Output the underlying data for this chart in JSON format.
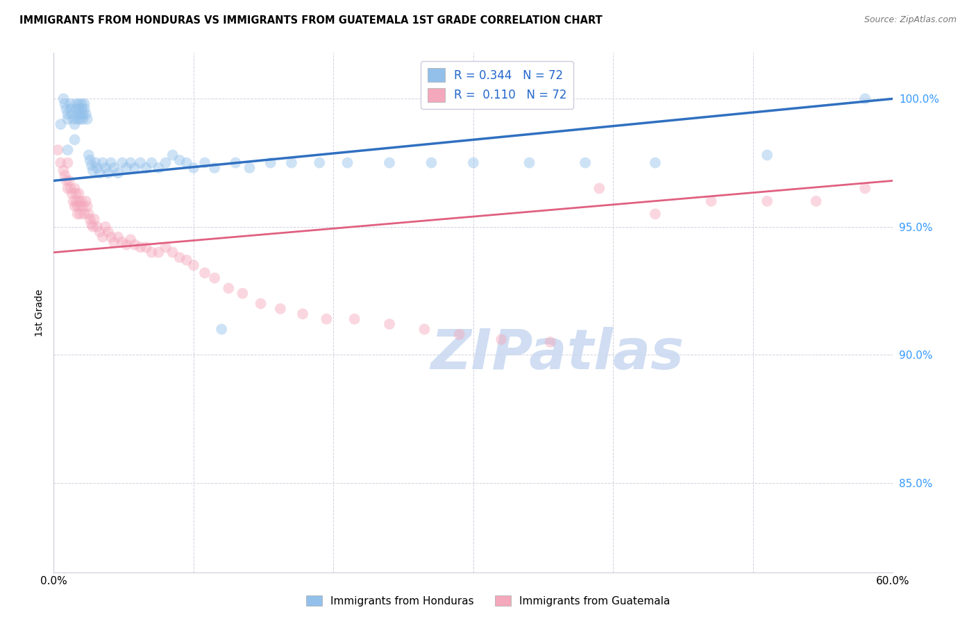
{
  "title": "IMMIGRANTS FROM HONDURAS VS IMMIGRANTS FROM GUATEMALA 1ST GRADE CORRELATION CHART",
  "source": "Source: ZipAtlas.com",
  "ylabel_label": "1st Grade",
  "xlim": [
    0.0,
    0.6
  ],
  "ylim": [
    0.815,
    1.018
  ],
  "y_ticks": [
    0.85,
    0.9,
    0.95,
    1.0
  ],
  "x_tick_positions": [
    0.0,
    0.1,
    0.2,
    0.3,
    0.4,
    0.5,
    0.6
  ],
  "x_tick_labels": [
    "0.0%",
    "",
    "",
    "",
    "",
    "",
    "60.0%"
  ],
  "R_honduras": 0.344,
  "N_honduras": 72,
  "R_guatemala": 0.11,
  "N_guatemala": 72,
  "legend_label_honduras": "Immigrants from Honduras",
  "legend_label_guatemala": "Immigrants from Guatemala",
  "color_honduras": "#92C0EA",
  "color_guatemala": "#F4A8BC",
  "line_color_honduras": "#3070C0",
  "line_color_guatemala": "#E06080",
  "marker_size": 130,
  "marker_alpha": 0.45,
  "watermark": "ZIPatlas",
  "watermark_color": "#C8D8F0",
  "honduras_x": [
    0.005,
    0.007,
    0.008,
    0.009,
    0.01,
    0.01,
    0.01,
    0.012,
    0.012,
    0.013,
    0.014,
    0.015,
    0.015,
    0.016,
    0.016,
    0.017,
    0.017,
    0.018,
    0.018,
    0.019,
    0.019,
    0.02,
    0.02,
    0.021,
    0.021,
    0.022,
    0.022,
    0.023,
    0.024,
    0.025,
    0.026,
    0.027,
    0.028,
    0.03,
    0.031,
    0.033,
    0.035,
    0.037,
    0.039,
    0.041,
    0.043,
    0.046,
    0.049,
    0.052,
    0.055,
    0.058,
    0.062,
    0.066,
    0.07,
    0.075,
    0.08,
    0.085,
    0.09,
    0.095,
    0.1,
    0.108,
    0.115,
    0.12,
    0.13,
    0.14,
    0.155,
    0.17,
    0.19,
    0.21,
    0.24,
    0.27,
    0.3,
    0.34,
    0.38,
    0.43,
    0.51,
    0.58
  ],
  "honduras_y": [
    0.99,
    1.0,
    0.998,
    0.996,
    0.994,
    0.992,
    0.98,
    0.998,
    0.996,
    0.994,
    0.992,
    0.99,
    0.984,
    0.998,
    0.996,
    0.994,
    0.992,
    0.998,
    0.996,
    0.994,
    0.992,
    0.998,
    0.996,
    0.994,
    0.992,
    0.998,
    0.996,
    0.994,
    0.992,
    0.978,
    0.976,
    0.974,
    0.972,
    0.975,
    0.973,
    0.971,
    0.975,
    0.973,
    0.971,
    0.975,
    0.973,
    0.971,
    0.975,
    0.973,
    0.975,
    0.973,
    0.975,
    0.973,
    0.975,
    0.973,
    0.975,
    0.978,
    0.976,
    0.975,
    0.973,
    0.975,
    0.973,
    0.91,
    0.975,
    0.973,
    0.975,
    0.975,
    0.975,
    0.975,
    0.975,
    0.975,
    0.975,
    0.975,
    0.975,
    0.975,
    0.978,
    1.0
  ],
  "guatemala_x": [
    0.003,
    0.005,
    0.007,
    0.008,
    0.009,
    0.01,
    0.01,
    0.011,
    0.012,
    0.013,
    0.014,
    0.015,
    0.015,
    0.016,
    0.016,
    0.017,
    0.017,
    0.018,
    0.018,
    0.019,
    0.019,
    0.02,
    0.021,
    0.022,
    0.023,
    0.024,
    0.025,
    0.026,
    0.027,
    0.028,
    0.029,
    0.031,
    0.033,
    0.035,
    0.037,
    0.039,
    0.041,
    0.043,
    0.046,
    0.049,
    0.052,
    0.055,
    0.058,
    0.062,
    0.066,
    0.07,
    0.075,
    0.08,
    0.085,
    0.09,
    0.095,
    0.1,
    0.108,
    0.115,
    0.125,
    0.135,
    0.148,
    0.162,
    0.178,
    0.195,
    0.215,
    0.24,
    0.265,
    0.29,
    0.32,
    0.355,
    0.39,
    0.43,
    0.47,
    0.51,
    0.545,
    0.58
  ],
  "guatemala_y": [
    0.98,
    0.975,
    0.972,
    0.97,
    0.968,
    0.975,
    0.965,
    0.968,
    0.965,
    0.963,
    0.96,
    0.965,
    0.958,
    0.963,
    0.96,
    0.958,
    0.955,
    0.963,
    0.96,
    0.958,
    0.955,
    0.96,
    0.958,
    0.955,
    0.96,
    0.958,
    0.955,
    0.953,
    0.951,
    0.95,
    0.953,
    0.95,
    0.948,
    0.946,
    0.95,
    0.948,
    0.946,
    0.944,
    0.946,
    0.944,
    0.943,
    0.945,
    0.943,
    0.942,
    0.942,
    0.94,
    0.94,
    0.942,
    0.94,
    0.938,
    0.937,
    0.935,
    0.932,
    0.93,
    0.926,
    0.924,
    0.92,
    0.918,
    0.916,
    0.914,
    0.914,
    0.912,
    0.91,
    0.908,
    0.906,
    0.905,
    0.965,
    0.955,
    0.96,
    0.96,
    0.96,
    0.965
  ]
}
